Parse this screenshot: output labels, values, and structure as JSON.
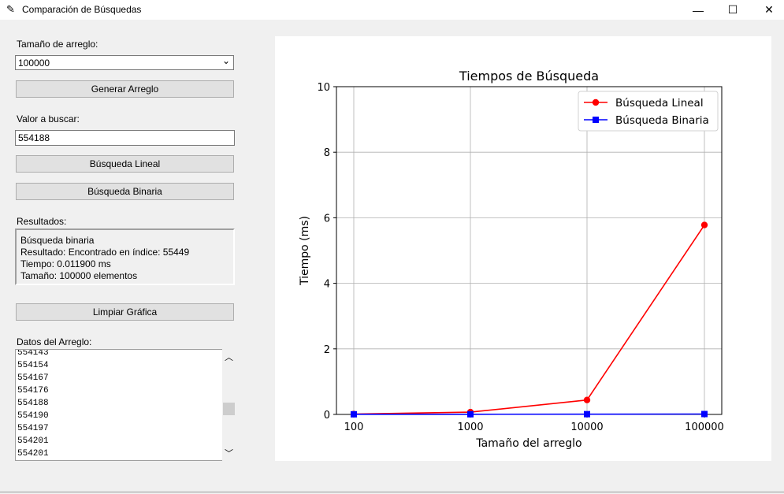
{
  "window": {
    "title": "Comparación de Búsquedas",
    "icon": "feather-icon",
    "controls": {
      "minimize": "—",
      "maximize": "☐",
      "close": "✕"
    }
  },
  "controls": {
    "array_size_label": "Tamaño de arreglo:",
    "array_size_value": "100000",
    "generate_button": "Generar Arreglo",
    "search_value_label": "Valor a buscar:",
    "search_value": "554188",
    "linear_button": "Búsqueda Lineal",
    "binary_button": "Búsqueda Binaria",
    "results_label": "Resultados:",
    "results_lines": [
      "Búsqueda binaria",
      "Resultado: Encontrado en índice: 55449",
      "Tiempo: 0.011900 ms",
      "Tamaño: 100000 elementos"
    ],
    "clear_button": "Limpiar Gráfica",
    "array_data_label": "Datos del Arreglo:",
    "array_data_lines": [
      "554143",
      "554154",
      "554167",
      "554176",
      "554188",
      "554190",
      "554197",
      "554201",
      "554201"
    ]
  },
  "chart_data": {
    "type": "line",
    "title": "Tiempos de Búsqueda",
    "xlabel": "Tamaño del arreglo",
    "ylabel": "Tiempo (ms)",
    "categories": [
      "100",
      "1000",
      "10000",
      "100000"
    ],
    "ylim": [
      0,
      10
    ],
    "yticks": [
      "0",
      "2",
      "4",
      "6",
      "8",
      "10"
    ],
    "grid": true,
    "legend_position": "top-right",
    "series": [
      {
        "name": "Búsqueda Lineal",
        "color": "#ff0000",
        "marker": "circle",
        "values": [
          0.01,
          0.07,
          0.44,
          5.78
        ]
      },
      {
        "name": "Búsqueda Binaria",
        "color": "#0000ff",
        "marker": "square",
        "values": [
          0.004,
          0.005,
          0.008,
          0.012
        ]
      }
    ]
  }
}
